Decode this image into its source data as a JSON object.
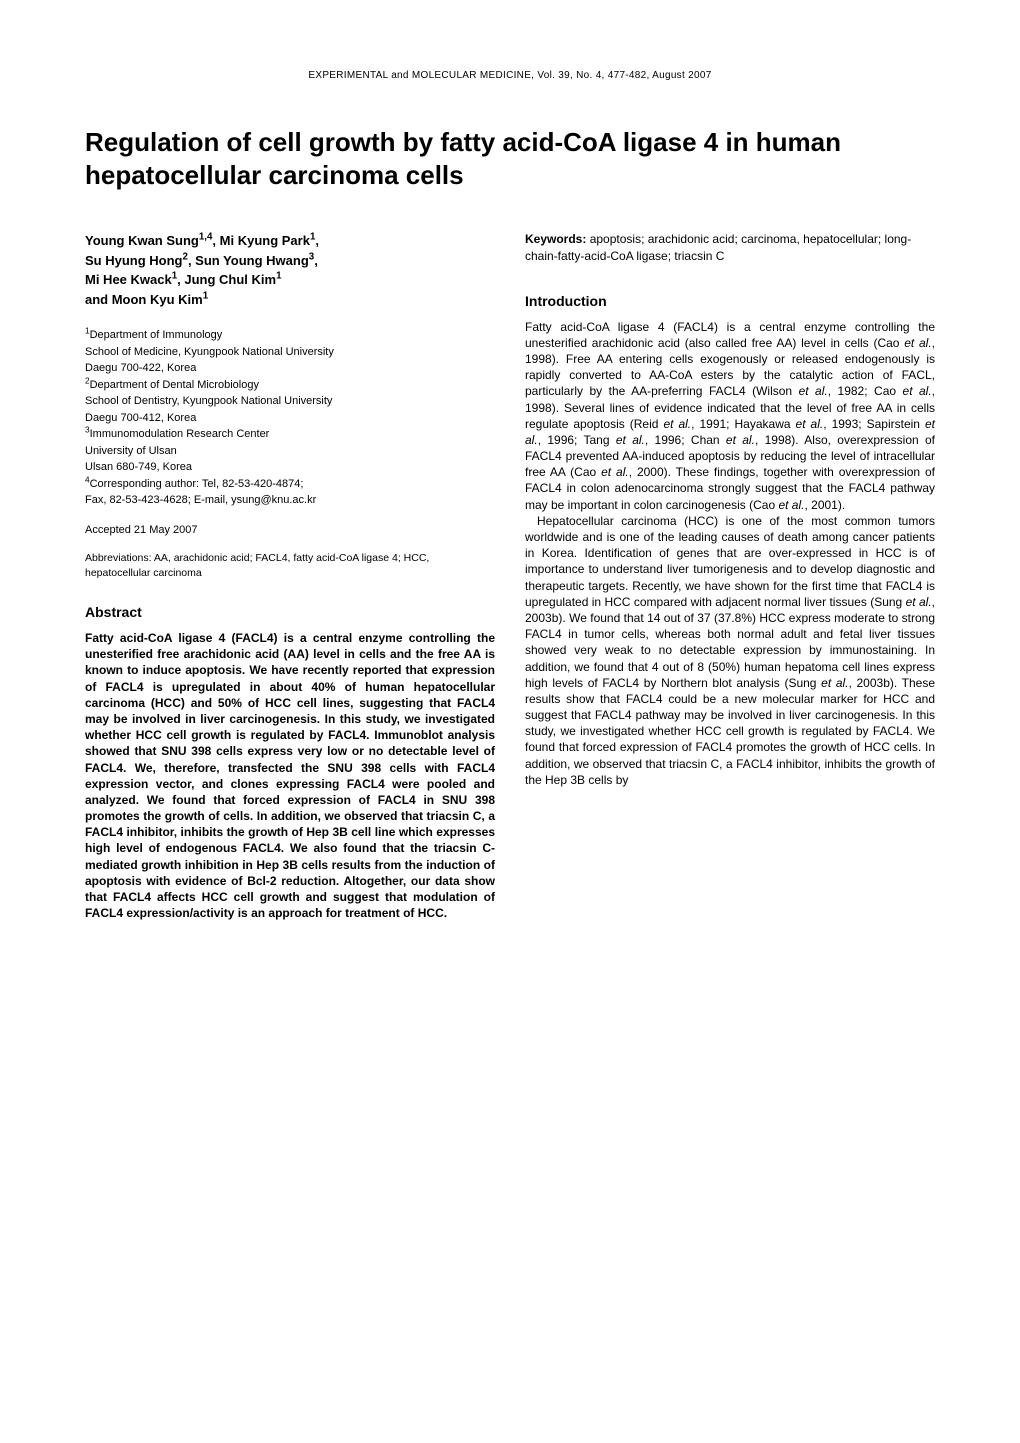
{
  "journal_header": "EXPERIMENTAL and MOLECULAR MEDICINE, Vol. 39, No. 4, 477-482, August 2007",
  "title": "Regulation of cell growth by fatty acid-CoA ligase 4 in human hepatocellular carcinoma cells",
  "authors_html": "Young Kwan Sung<sup>1,4</sup>, Mi Kyung Park<sup>1</sup>,<br>Su Hyung Hong<sup>2</sup>, Sun Young Hwang<sup>3</sup>,<br>Mi Hee Kwack<sup>1</sup>, Jung Chul Kim<sup>1</sup><br>and Moon Kyu Kim<sup>1</sup>",
  "affiliations_html": "<sup>1</sup>Department of Immunology<br>School of Medicine, Kyungpook National University<br>Daegu 700-422, Korea<br><sup>2</sup>Department of Dental Microbiology<br>School of Dentistry, Kyungpook National University<br>Daegu 700-412, Korea<br><sup>3</sup>Immunomodulation Research Center<br>University of Ulsan<br>Ulsan 680-749, Korea<br><sup>4</sup>Corresponding author: Tel, 82-53-420-4874;<br>Fax, 82-53-423-4628; E-mail, ysung@knu.ac.kr",
  "accepted": "Accepted 21 May 2007",
  "abbreviations": "Abbreviations: AA, arachidonic acid; FACL4, fatty acid-CoA ligase 4; HCC, hepatocellular carcinoma",
  "abstract_heading": "Abstract",
  "abstract_body": "Fatty acid-CoA ligase 4 (FACL4) is a central enzyme controlling the unesterified free arachidonic acid (AA) level in cells and the free AA is known to induce apoptosis. We have recently reported that expression of FACL4 is upregulated in about 40% of human hepatocellular carcinoma (HCC) and 50% of HCC cell lines, suggesting that FACL4 may be involved in liver carcinogenesis. In this study, we investigated whether HCC cell growth is regulated by FACL4. Immunoblot analysis showed that SNU 398 cells express very low or no detectable level of FACL4. We, therefore, transfected the SNU 398 cells with FACL4 expression vector, and clones expressing FACL4 were pooled and analyzed. We found that forced expression of FACL4 in SNU 398 promotes the growth of cells. In addition, we observed that triacsin C, a FACL4 inhibitor, inhibits the growth of Hep 3B cell line which expresses high level of endogenous FACL4. We also found that the triacsin C-mediated growth inhibition in Hep 3B cells results from the induction of apoptosis with evidence of Bcl-2 reduction. Altogether, our data show that FACL4 affects HCC cell growth and suggest that modulation of FACL4 expression/activity is an approach for treatment of HCC.",
  "keywords_label": "Keywords:",
  "keywords_text": " apoptosis; arachidonic acid; carcinoma, hepatocellular; long-chain-fatty-acid-CoA ligase; triacsin C",
  "intro_heading": "Introduction",
  "intro_p1_html": "Fatty acid-CoA ligase 4 (FACL4) is a central enzyme controlling the unesterified arachidonic acid (also called free AA) level in cells (Cao <span class=\"italic\">et al.</span>, 1998). Free AA entering cells exogenously or released endogenously is rapidly converted to AA-CoA esters by the catalytic action of FACL, particularly by the AA-preferring FACL4 (Wilson <span class=\"italic\">et al.</span>, 1982; Cao <span class=\"italic\">et al.</span>, 1998). Several lines of evidence indicated that the level of free AA in cells regulate apoptosis (Reid <span class=\"italic\">et al.</span>, 1991; Hayakawa <span class=\"italic\">et al.</span>, 1993; Sapirstein <span class=\"italic\">et al.</span>, 1996; Tang <span class=\"italic\">et al.</span>, 1996; Chan <span class=\"italic\">et al.</span>, 1998). Also, overexpression of FACL4 prevented AA-induced apoptosis by reducing the level of intracellular free AA (Cao <span class=\"italic\">et al.</span>, 2000). These findings, together with overexpression of FACL4 in colon adenocarcinoma strongly suggest that the FACL4 pathway may be important in colon carcinogenesis (Cao <span class=\"italic\">et al.</span>, 2001).",
  "intro_p2_html": "Hepatocellular carcinoma (HCC) is one of the most common tumors worldwide and is one of the leading causes of death among cancer patients in Korea. Identification of genes that are over-expressed in HCC is of importance to understand liver tumorigenesis and to develop diagnostic and therapeutic targets. Recently, we have shown for the first time that FACL4 is upregulated in HCC compared with adjacent normal liver tissues (Sung <span class=\"italic\">et al.</span>, 2003b). We found that 14 out of 37 (37.8%) HCC express moderate to strong FACL4 in tumor cells, whereas both normal adult and fetal liver tissues showed very weak to no detectable expression by immunostaining. In addition, we found that 4 out of 8 (50%) human hepatoma cell lines express high levels of FACL4 by Northern blot analysis (Sung <span class=\"italic\">et al.</span>, 2003b). These results show that FACL4 could be a new molecular marker for HCC and suggest that FACL4 pathway may be involved in liver carcinogenesis. In this study, we investigated whether HCC cell growth is regulated by FACL4. We found that forced expression of FACL4 promotes the growth of HCC cells. In addition, we observed that triacsin C, a FACL4 inhibitor, inhibits the growth of the Hep 3B cells by"
}
